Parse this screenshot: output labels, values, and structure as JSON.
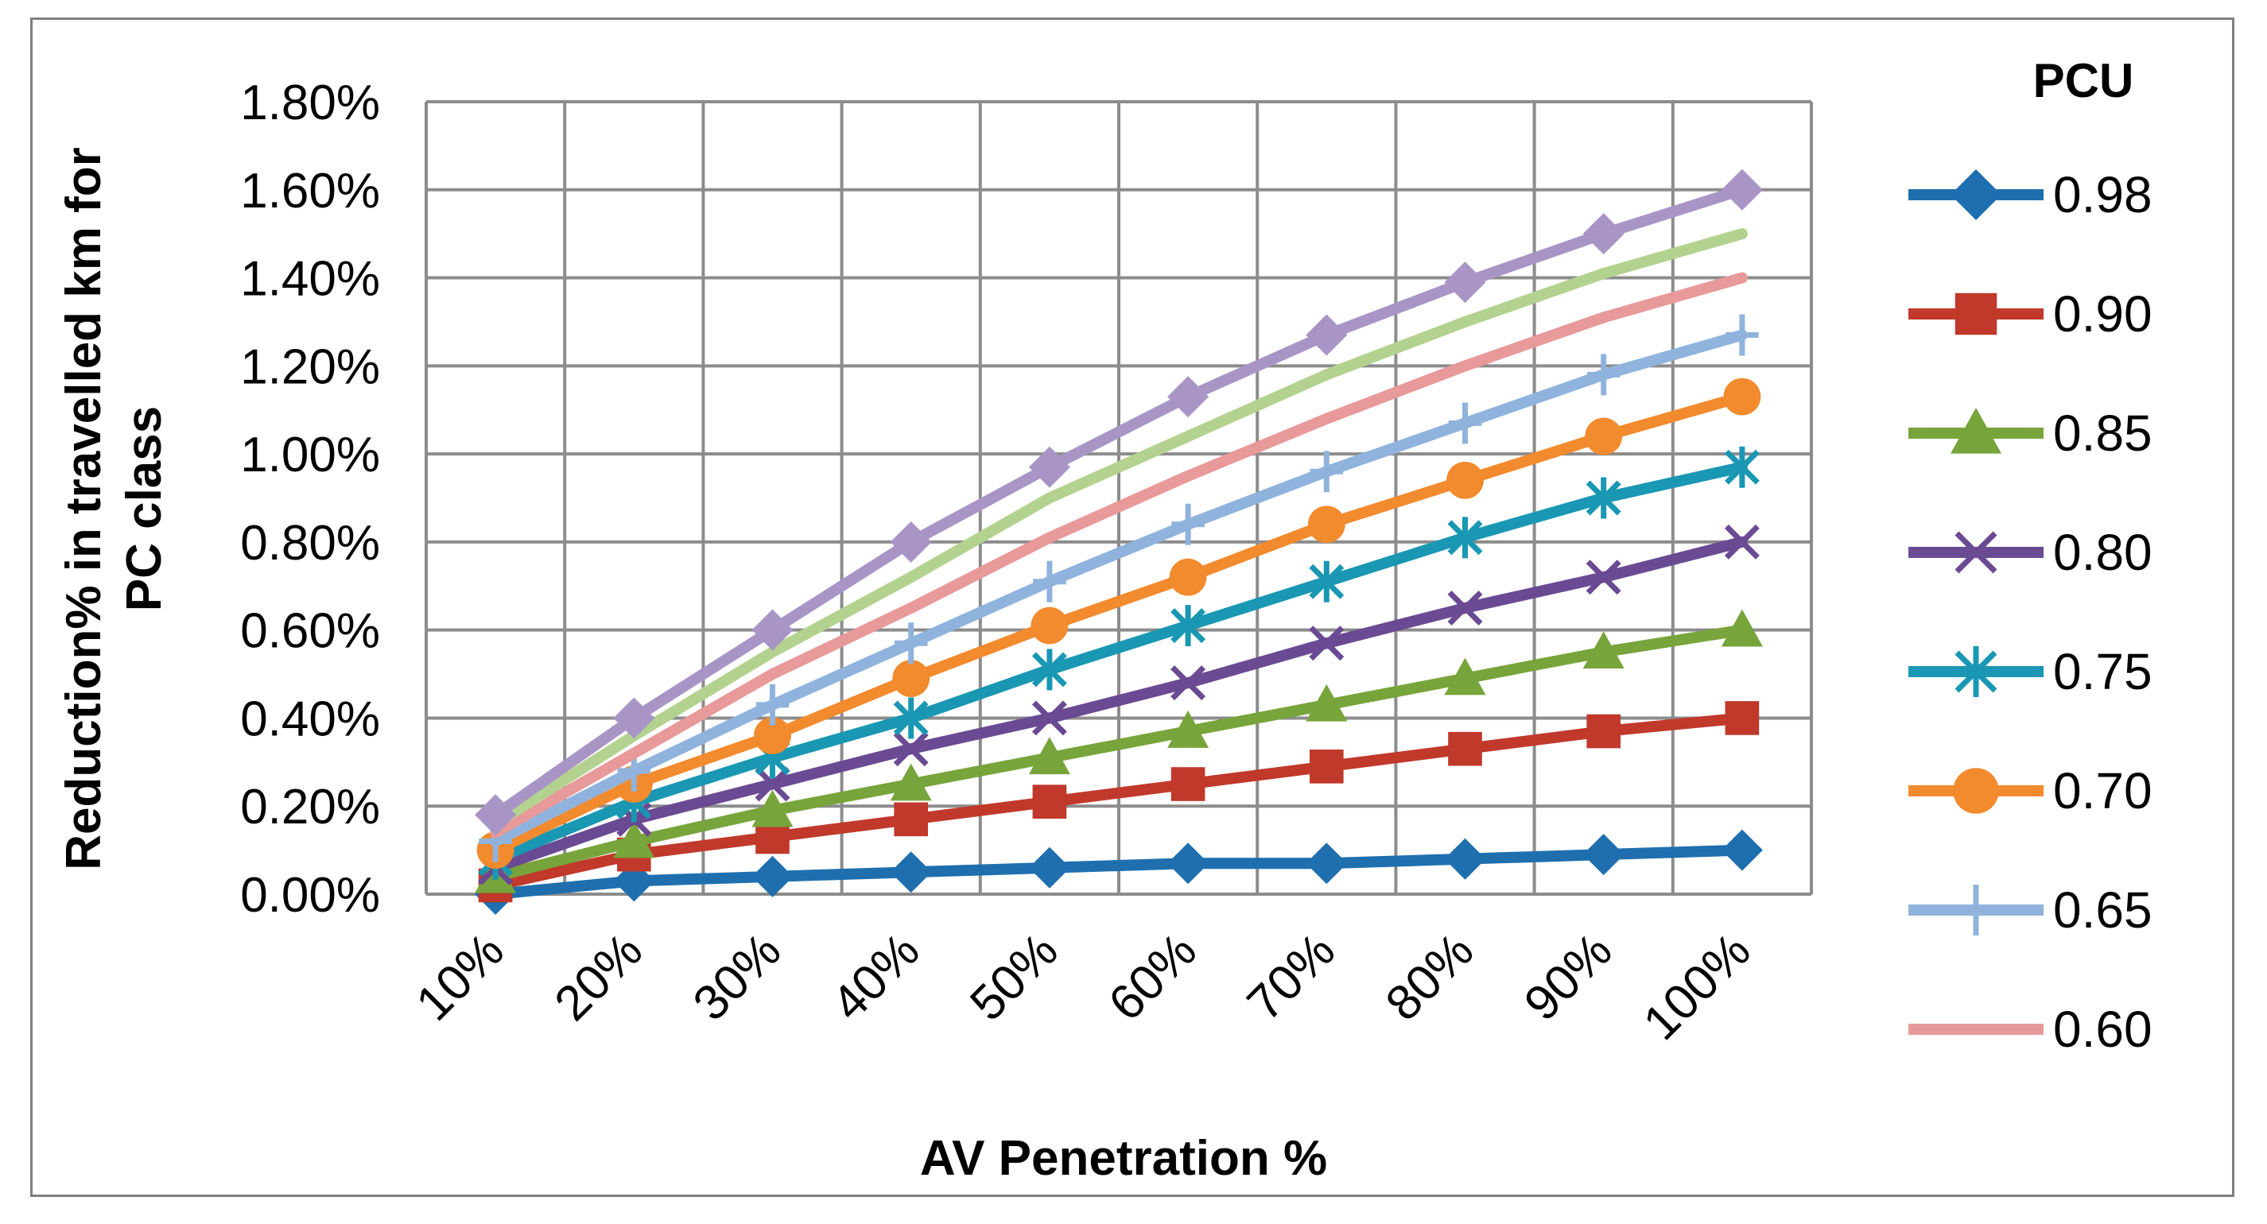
{
  "chart_data": {
    "type": "line",
    "title": "",
    "xlabel": "AV Penetration %",
    "ylabel": "Reduction% in travelled km for PC class",
    "legend_title": "PCU",
    "legend_position": "right",
    "grid": true,
    "categories": [
      "10%",
      "20%",
      "30%",
      "40%",
      "50%",
      "60%",
      "70%",
      "80%",
      "90%",
      "100%"
    ],
    "ylim": [
      0,
      0.018
    ],
    "yticks": [
      "0.00%",
      "0.20%",
      "0.40%",
      "0.60%",
      "0.80%",
      "1.00%",
      "1.20%",
      "1.40%",
      "1.60%",
      "1.80%"
    ],
    "series": [
      {
        "name": "0.98",
        "color": "#1f6fae",
        "marker": "diamond",
        "values": [
          0.0,
          0.0003,
          0.0004,
          0.0005,
          0.0006,
          0.0007,
          0.0007,
          0.0008,
          0.0009,
          0.001
        ]
      },
      {
        "name": "0.90",
        "color": "#c0392b",
        "marker": "square",
        "values": [
          0.0002,
          0.0009,
          0.0013,
          0.0017,
          0.0021,
          0.0025,
          0.0029,
          0.0033,
          0.0037,
          0.004
        ]
      },
      {
        "name": "0.85",
        "color": "#77a43b",
        "marker": "triangle",
        "values": [
          0.0004,
          0.0012,
          0.0019,
          0.0025,
          0.0031,
          0.0037,
          0.0043,
          0.0049,
          0.0055,
          0.006
        ]
      },
      {
        "name": "0.80",
        "color": "#6a4a93",
        "marker": "x",
        "values": [
          0.0006,
          0.0017,
          0.0025,
          0.0033,
          0.004,
          0.0048,
          0.0057,
          0.0065,
          0.0072,
          0.008
        ]
      },
      {
        "name": "0.75",
        "color": "#1a97b3",
        "marker": "star",
        "values": [
          0.0008,
          0.0021,
          0.0031,
          0.004,
          0.0051,
          0.0061,
          0.0071,
          0.0081,
          0.009,
          0.0097
        ]
      },
      {
        "name": "0.70",
        "color": "#f28a2e",
        "marker": "circle",
        "values": [
          0.001,
          0.0025,
          0.0036,
          0.0049,
          0.0061,
          0.0072,
          0.0084,
          0.0094,
          0.0104,
          0.0113
        ]
      },
      {
        "name": "0.65",
        "color": "#8fb3dc",
        "marker": "plus",
        "values": [
          0.0012,
          0.0028,
          0.0043,
          0.0057,
          0.0071,
          0.0084,
          0.0096,
          0.0107,
          0.0118,
          0.0127
        ]
      },
      {
        "name": "0.60",
        "color": "#e8999a",
        "marker": "none",
        "values": [
          0.0014,
          0.0032,
          0.005,
          0.0065,
          0.0081,
          0.0095,
          0.0108,
          0.012,
          0.0131,
          0.014
        ]
      },
      {
        "name": "",
        "color": "#b4d28f",
        "marker": "none",
        "values": [
          0.0016,
          0.0036,
          0.0055,
          0.0072,
          0.009,
          0.0104,
          0.0118,
          0.013,
          0.0141,
          0.015
        ]
      },
      {
        "name": "",
        "color": "#a895c6",
        "marker": "diamond",
        "values": [
          0.0018,
          0.004,
          0.006,
          0.008,
          0.0097,
          0.0113,
          0.0127,
          0.0139,
          0.015,
          0.016
        ]
      }
    ]
  }
}
